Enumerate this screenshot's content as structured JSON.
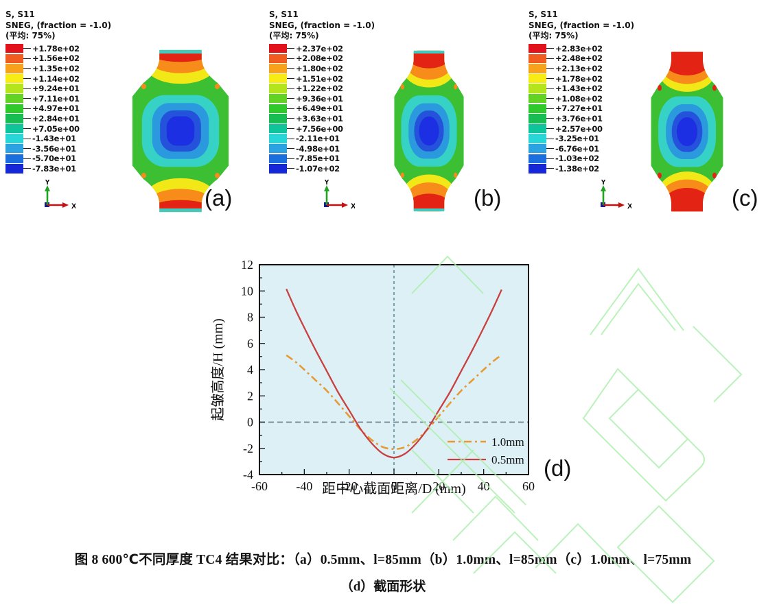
{
  "panels": [
    {
      "id": "a",
      "label": "(a)",
      "legend": {
        "title": "S, S11",
        "subtitle": "SNEG, (fraction = -1.0)",
        "average": "(平均: 75%)",
        "values": [
          "+1.78e+02",
          "+1.56e+02",
          "+1.35e+02",
          "+1.14e+02",
          "+9.24e+01",
          "+7.11e+01",
          "+4.97e+01",
          "+2.84e+01",
          "+7.05e+00",
          "-1.43e+01",
          "-3.56e+01",
          "-5.70e+01",
          "-7.83e+01"
        ]
      }
    },
    {
      "id": "b",
      "label": "(b)",
      "legend": {
        "title": "S, S11",
        "subtitle": "SNEG, (fraction = -1.0)",
        "average": "(平均: 75%)",
        "values": [
          "+2.37e+02",
          "+2.08e+02",
          "+1.80e+02",
          "+1.51e+02",
          "+1.22e+02",
          "+9.36e+01",
          "+6.49e+01",
          "+3.63e+01",
          "+7.56e+00",
          "-2.11e+01",
          "-4.98e+01",
          "-7.85e+01",
          "-1.07e+02"
        ]
      }
    },
    {
      "id": "c",
      "label": "(c)",
      "legend": {
        "title": "S, S11",
        "subtitle": "SNEG, (fraction = -1.0)",
        "average": "(平均: 75%)",
        "values": [
          "+2.83e+02",
          "+2.48e+02",
          "+2.13e+02",
          "+1.78e+02",
          "+1.43e+02",
          "+1.08e+02",
          "+7.27e+01",
          "+3.76e+01",
          "+2.57e+00",
          "-3.25e+01",
          "-6.76e+01",
          "-1.03e+02",
          "-1.38e+02"
        ]
      }
    }
  ],
  "spectrum_colors": [
    "#e1121c",
    "#f15c21",
    "#f8a11b",
    "#f7ec13",
    "#b4e51c",
    "#63d323",
    "#2fc92c",
    "#17bc52",
    "#0ec49a",
    "#27d6d6",
    "#2ba3e2",
    "#1a6ede",
    "#1527d6"
  ],
  "contour_colors": {
    "green": "#3cbf33",
    "yellow": "#f2e818",
    "orange": "#f78c1b",
    "red": "#e32313",
    "teal_strip": "#45c8be",
    "ring_teal": "#36d2c5",
    "ring_sky": "#2b99dd",
    "ring_blue": "#2452da",
    "ring_core": "#1c2fe2"
  },
  "triad": {
    "x": "X",
    "y": "Y"
  },
  "chart_label": "(d)",
  "chart_data": {
    "type": "line",
    "title": "",
    "xlabel": "距中心截面距离/D (mm)",
    "ylabel": "起皱高度/H (mm)",
    "xlim": [
      -60,
      60
    ],
    "ylim": [
      -4,
      12
    ],
    "x_ticks": [
      -60,
      -40,
      -20,
      0,
      20,
      40,
      60
    ],
    "y_ticks": [
      -4,
      -2,
      0,
      2,
      4,
      6,
      8,
      10,
      12
    ],
    "x_minor_step": 10,
    "y_minor_step": 1,
    "background": "#dcf0f6",
    "grid": false,
    "reference_lines": {
      "horizontal_at": 0,
      "vertical_at": 0
    },
    "legend_position": "lower right",
    "series": [
      {
        "name": "1.0mm",
        "color": "#e69a33",
        "style": "dash-dot",
        "x": [
          -48,
          -44,
          -40,
          -35,
          -30,
          -25,
          -20,
          -15,
          -10,
          -5,
          0,
          5,
          10,
          15,
          20,
          25,
          30,
          35,
          40,
          44,
          47
        ],
        "y": [
          5.1,
          4.6,
          4.0,
          3.2,
          2.4,
          1.45,
          0.45,
          -0.55,
          -1.35,
          -1.9,
          -2.05,
          -1.9,
          -1.35,
          -0.55,
          0.45,
          1.45,
          2.4,
          3.2,
          4.0,
          4.6,
          5.0
        ]
      },
      {
        "name": "0.5mm",
        "color": "#c94040",
        "style": "solid",
        "x": [
          -48,
          -44,
          -40,
          -35,
          -30,
          -25,
          -20,
          -15,
          -10,
          -5,
          0,
          5,
          10,
          15,
          20,
          25,
          30,
          35,
          40,
          44,
          48
        ],
        "y": [
          10.15,
          8.6,
          7.2,
          5.5,
          3.9,
          2.3,
          0.9,
          -0.5,
          -1.6,
          -2.4,
          -2.7,
          -2.4,
          -1.6,
          -0.5,
          0.9,
          2.3,
          3.9,
          5.5,
          7.2,
          8.6,
          10.1
        ]
      }
    ]
  },
  "caption": {
    "line1": "图 8  600℃不同厚度 TC4 结果对比：（a）0.5mm、l=85mm（b）1.0mm、l=85mm（c）1.0mm、l=75mm",
    "line2": "（d）截面形状"
  }
}
